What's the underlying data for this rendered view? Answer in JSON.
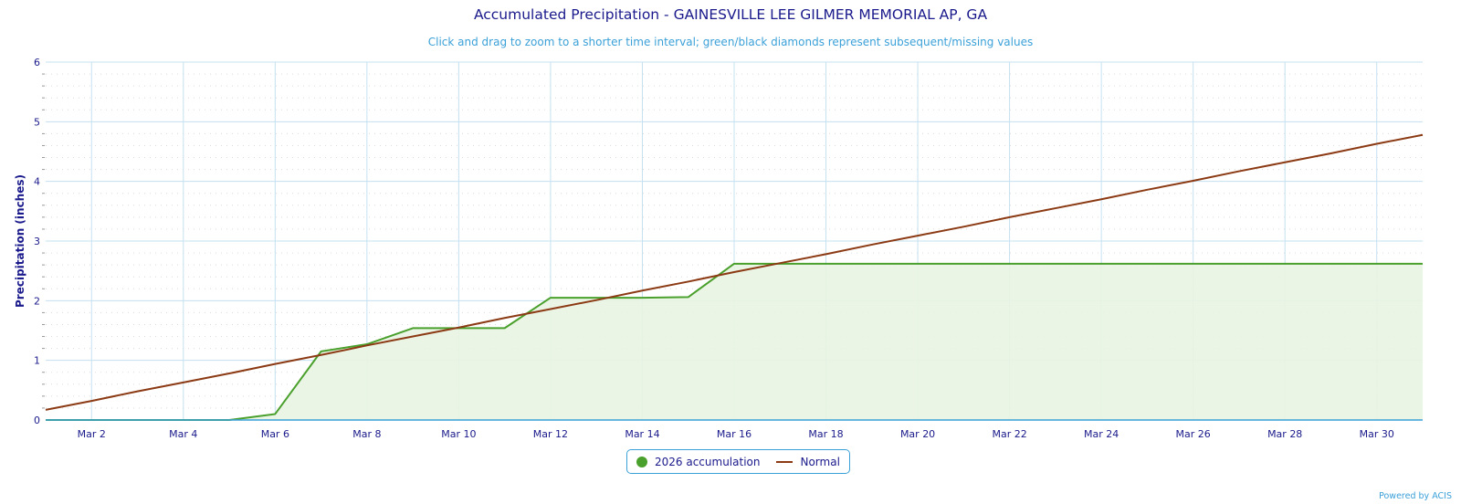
{
  "header": {
    "title": "Accumulated Precipitation - GAINESVILLE LEE GILMER MEMORIAL AP, GA",
    "subtitle": "Click and drag to zoom to a shorter time interval; green/black diamonds represent subsequent/missing values"
  },
  "credit": "Powered by ACIS",
  "colors": {
    "accumulation_line": "#4aa02c",
    "accumulation_fill": "#e9f4e2",
    "normal_line": "#8b3a14",
    "grid_major": "#c5e0f0",
    "grid_minor": "#dcdcdc",
    "axis_text": "#1a1a8c",
    "x_axis": "#3aa0d8"
  },
  "chart_data": {
    "type": "area",
    "title": "Accumulated Precipitation - GAINESVILLE LEE GILMER MEMORIAL AP, GA",
    "xlabel": "",
    "ylabel": "Precipitation (inches)",
    "ylim": [
      0,
      6
    ],
    "yticks": [
      "0",
      "1",
      "2",
      "3",
      "4",
      "5",
      "6"
    ],
    "x_days": [
      1,
      2,
      3,
      4,
      5,
      6,
      7,
      8,
      9,
      10,
      11,
      12,
      13,
      14,
      15,
      16,
      17,
      18,
      19,
      20,
      21,
      22,
      23,
      24,
      25,
      26,
      27,
      28,
      29,
      30,
      31
    ],
    "xtick_labels": [
      "Mar 2",
      "Mar 4",
      "Mar 6",
      "Mar 8",
      "Mar 10",
      "Mar 12",
      "Mar 14",
      "Mar 16",
      "Mar 18",
      "Mar 20",
      "Mar 22",
      "Mar 24",
      "Mar 26",
      "Mar 28",
      "Mar 30"
    ],
    "xtick_days": [
      2,
      4,
      6,
      8,
      10,
      12,
      14,
      16,
      18,
      20,
      22,
      24,
      26,
      28,
      30
    ],
    "grid": true,
    "legend_position": "bottom-center",
    "series": [
      {
        "name": "2026 accumulation",
        "kind": "area",
        "values": [
          0,
          0,
          0,
          0,
          0,
          0.1,
          1.15,
          1.27,
          1.54,
          1.54,
          1.54,
          2.05,
          2.05,
          2.05,
          2.06,
          2.62,
          2.62,
          2.62,
          2.62,
          2.62,
          2.62,
          2.62,
          2.62,
          2.62,
          2.62,
          2.62,
          2.62,
          2.62,
          2.62,
          2.62,
          2.62
        ]
      },
      {
        "name": "Normal",
        "kind": "line",
        "values": [
          0.17,
          0.32,
          0.48,
          0.63,
          0.78,
          0.94,
          1.09,
          1.25,
          1.4,
          1.55,
          1.71,
          1.86,
          2.01,
          2.17,
          2.32,
          2.48,
          2.63,
          2.78,
          2.94,
          3.09,
          3.24,
          3.4,
          3.55,
          3.7,
          3.86,
          4.01,
          4.17,
          4.32,
          4.47,
          4.63,
          4.78
        ]
      }
    ]
  },
  "legend": [
    {
      "label": "2026 accumulation",
      "symbol": "circle"
    },
    {
      "label": "Normal",
      "symbol": "line"
    }
  ]
}
